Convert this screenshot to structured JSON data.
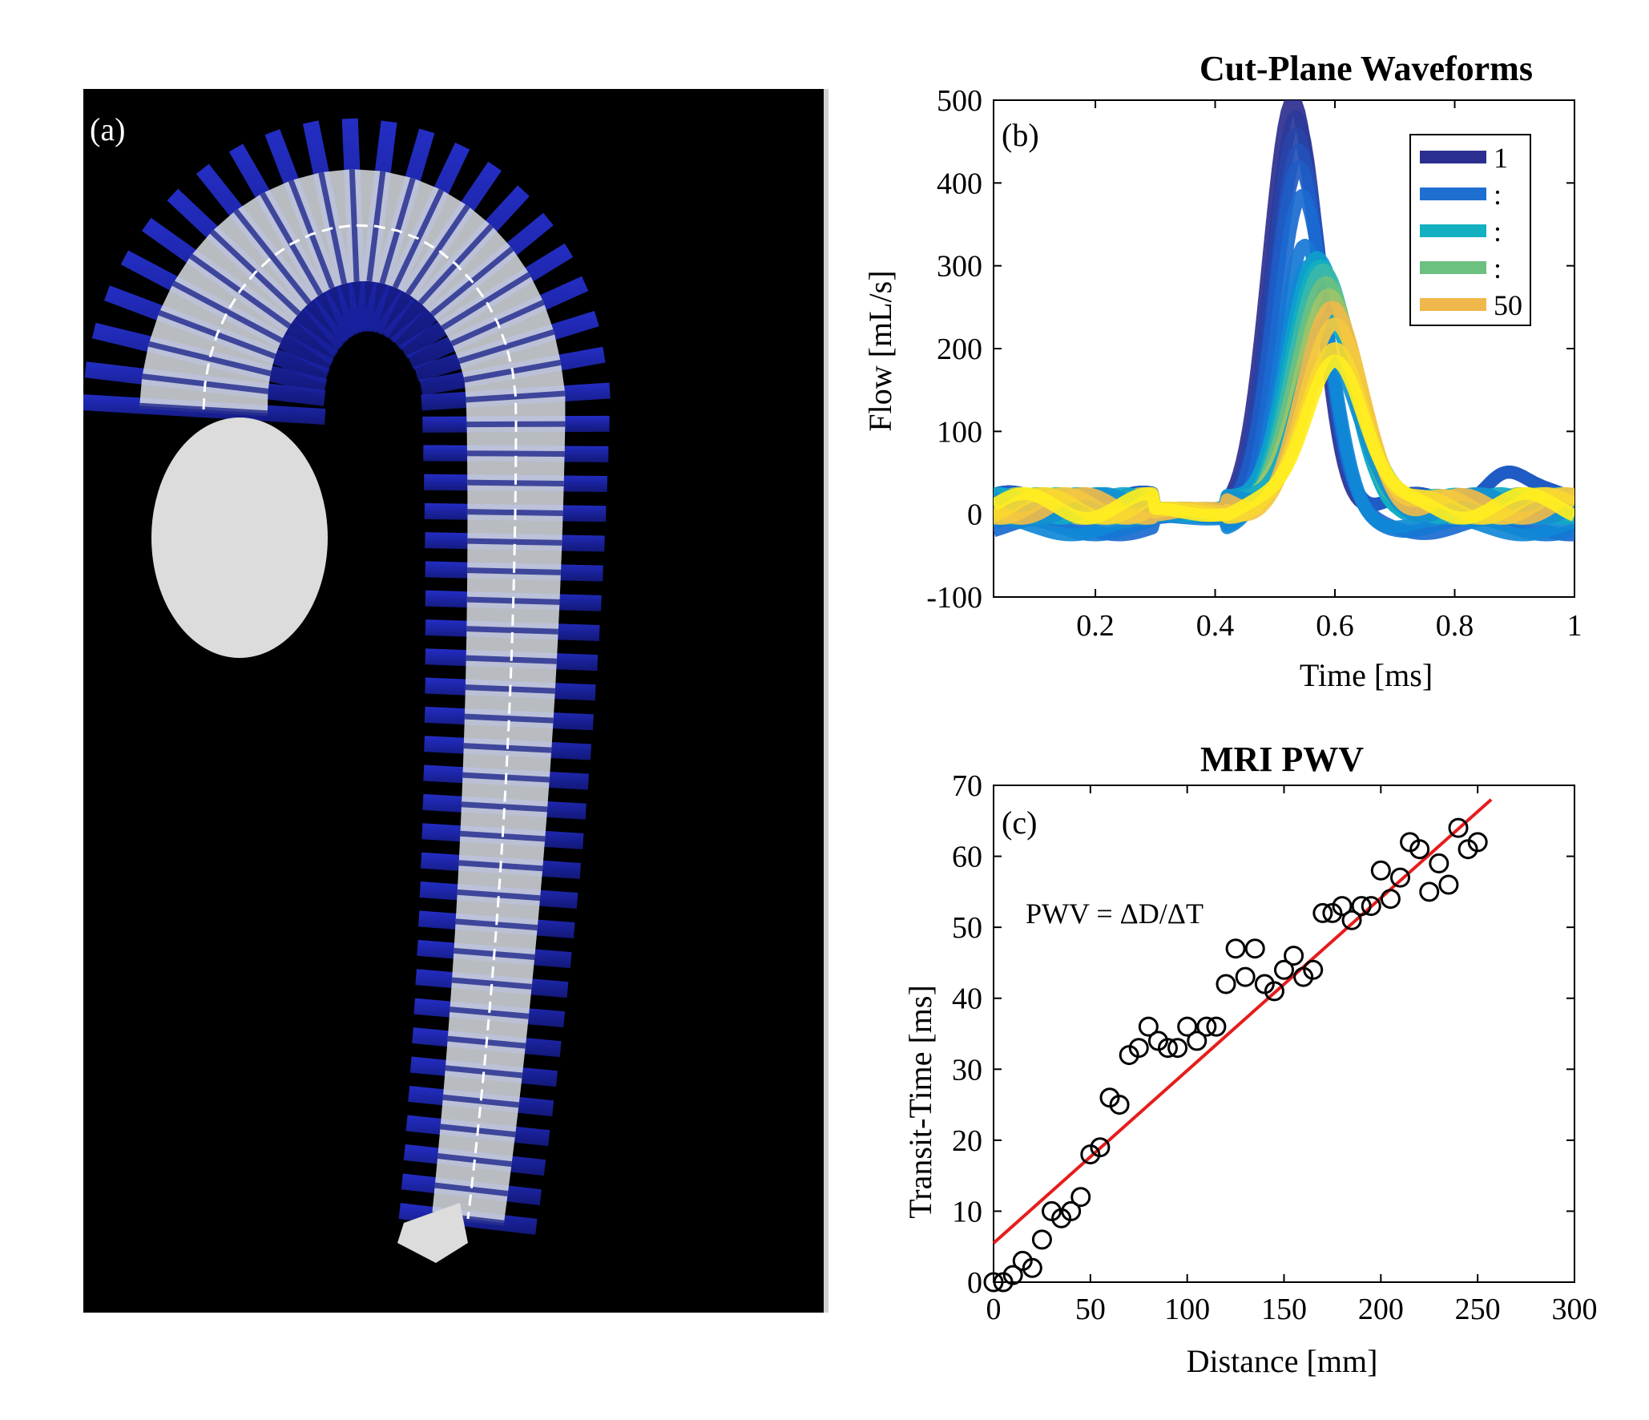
{
  "panel_a": {
    "label": "(a)"
  },
  "chart_data": [
    {
      "type": "line",
      "title": "Cut-Plane Waveforms",
      "panel_label": "(b)",
      "xlabel": "Time [ms]",
      "ylabel": "Flow [mL/s]",
      "xlim": [
        0.03,
        1.0
      ],
      "ylim": [
        -100,
        500
      ],
      "xticks": [
        0.2,
        0.4,
        0.6,
        0.8,
        1
      ],
      "yticks": [
        -100,
        0,
        100,
        200,
        300,
        400,
        500
      ],
      "legend": {
        "position": "top-right",
        "entries": [
          {
            "label": "1",
            "color": "#2c2f8f"
          },
          {
            "label": ":",
            "color": "#1f6fd0"
          },
          {
            "label": ":",
            "color": "#12b0c0"
          },
          {
            "label": ":",
            "color": "#6cc080"
          },
          {
            "label": "50",
            "color": "#f0b84a"
          }
        ]
      },
      "colors": {
        "start": "#2c2f8f",
        "mid1": "#1f6fd0",
        "mid2": "#12b0c0",
        "mid3": "#7cc47a",
        "end": "#ffee20"
      },
      "series": [
        {
          "peak_time": 0.53,
          "peak_flow": 500,
          "color": "#2c2f8f"
        },
        {
          "peak_time": 0.535,
          "peak_flow": 480,
          "color": "#2b3a9a"
        },
        {
          "peak_time": 0.535,
          "peak_flow": 460,
          "color": "#2844a8"
        },
        {
          "peak_time": 0.54,
          "peak_flow": 440,
          "color": "#2450b8"
        },
        {
          "peak_time": 0.54,
          "peak_flow": 420,
          "color": "#1f5cc6"
        },
        {
          "peak_time": 0.545,
          "peak_flow": 385,
          "color": "#1a6ad0"
        },
        {
          "peak_time": 0.55,
          "peak_flow": 325,
          "color": "#1677d4"
        },
        {
          "peak_time": 0.555,
          "peak_flow": 300,
          "color": "#1088d6"
        },
        {
          "peak_time": 0.57,
          "peak_flow": 310,
          "color": "#0ea0cc"
        },
        {
          "peak_time": 0.575,
          "peak_flow": 300,
          "color": "#12b0c0"
        },
        {
          "peak_time": 0.58,
          "peak_flow": 295,
          "color": "#3cb8a8"
        },
        {
          "peak_time": 0.585,
          "peak_flow": 280,
          "color": "#6cc080"
        },
        {
          "peak_time": 0.59,
          "peak_flow": 265,
          "color": "#9cc468"
        },
        {
          "peak_time": 0.59,
          "peak_flow": 235,
          "color": "#12a8c8"
        },
        {
          "peak_time": 0.59,
          "peak_flow": 190,
          "color": "#1290d0"
        },
        {
          "peak_time": 0.595,
          "peak_flow": 250,
          "color": "#f0b84a"
        },
        {
          "peak_time": 0.6,
          "peak_flow": 230,
          "color": "#f4c840"
        },
        {
          "peak_time": 0.6,
          "peak_flow": 200,
          "color": "#f8d830"
        },
        {
          "peak_time": 0.6,
          "peak_flow": 185,
          "color": "#ffee20"
        }
      ]
    },
    {
      "type": "scatter",
      "title": "MRI PWV",
      "panel_label": "(c)",
      "annotation": "PWV = ΔD/ΔT",
      "xlabel": "Distance [mm]",
      "ylabel": "Transit-Time [ms]",
      "xlim": [
        0,
        300
      ],
      "ylim": [
        0,
        70
      ],
      "xticks": [
        0,
        50,
        100,
        150,
        200,
        250,
        300
      ],
      "yticks": [
        0,
        10,
        20,
        30,
        40,
        50,
        60,
        70
      ],
      "points": [
        [
          0,
          0
        ],
        [
          5,
          0
        ],
        [
          10,
          1
        ],
        [
          15,
          3
        ],
        [
          20,
          2
        ],
        [
          25,
          6
        ],
        [
          30,
          10
        ],
        [
          35,
          9
        ],
        [
          40,
          10
        ],
        [
          45,
          12
        ],
        [
          50,
          18
        ],
        [
          55,
          19
        ],
        [
          60,
          26
        ],
        [
          65,
          25
        ],
        [
          70,
          32
        ],
        [
          75,
          33
        ],
        [
          80,
          36
        ],
        [
          85,
          34
        ],
        [
          90,
          33
        ],
        [
          95,
          33
        ],
        [
          100,
          36
        ],
        [
          105,
          34
        ],
        [
          110,
          36
        ],
        [
          115,
          36
        ],
        [
          120,
          42
        ],
        [
          125,
          47
        ],
        [
          130,
          43
        ],
        [
          135,
          47
        ],
        [
          140,
          42
        ],
        [
          145,
          41
        ],
        [
          150,
          44
        ],
        [
          155,
          46
        ],
        [
          160,
          43
        ],
        [
          165,
          44
        ],
        [
          170,
          52
        ],
        [
          175,
          52
        ],
        [
          180,
          53
        ],
        [
          185,
          51
        ],
        [
          190,
          53
        ],
        [
          195,
          53
        ],
        [
          200,
          58
        ],
        [
          205,
          54
        ],
        [
          210,
          57
        ],
        [
          215,
          62
        ],
        [
          220,
          61
        ],
        [
          225,
          55
        ],
        [
          230,
          59
        ],
        [
          235,
          56
        ],
        [
          240,
          64
        ],
        [
          245,
          61
        ],
        [
          250,
          62
        ]
      ],
      "fit": {
        "color": "#e61c1c",
        "x": [
          0,
          257
        ],
        "y": [
          5.5,
          68
        ]
      },
      "marker_color": "#000000"
    }
  ]
}
